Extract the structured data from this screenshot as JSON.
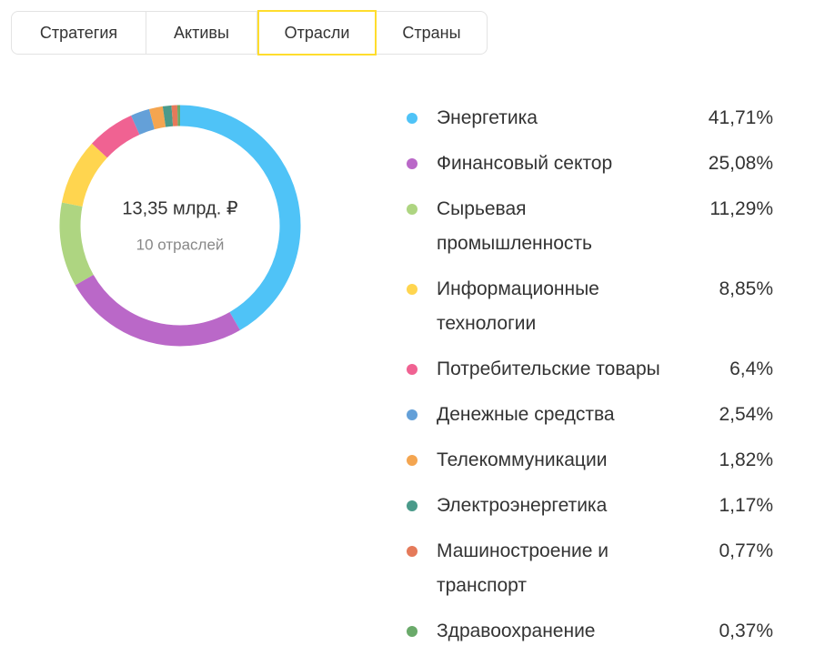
{
  "tabs": [
    "Стратегия",
    "Активы",
    "Отрасли",
    "Страны"
  ],
  "chart_data": {
    "type": "donut",
    "center_title": "13,35 млрд. ₽",
    "center_subtitle": "10 отраслей",
    "categories": [
      "Энергетика",
      "Финансовый сектор",
      "Сырьевая промышленность",
      "Информационные технологии",
      "Потребительские товары",
      "Денежные средства",
      "Телекоммуникации",
      "Электроэнергетика",
      "Машиностроение и транспорт",
      "Здравоохранение"
    ],
    "values": [
      41.71,
      25.08,
      11.29,
      8.85,
      6.4,
      2.54,
      1.82,
      1.17,
      0.77,
      0.37
    ],
    "value_labels": [
      "41,71%",
      "25,08%",
      "11,29%",
      "8,85%",
      "6,4%",
      "2,54%",
      "1,82%",
      "1,17%",
      "0,77%",
      "0,37%"
    ],
    "colors": [
      "#4fc3f7",
      "#ba68c8",
      "#aed581",
      "#ffd54f",
      "#f06292",
      "#64a0d8",
      "#f4a550",
      "#4a9a8a",
      "#e57a5a",
      "#6aaa6a"
    ]
  }
}
